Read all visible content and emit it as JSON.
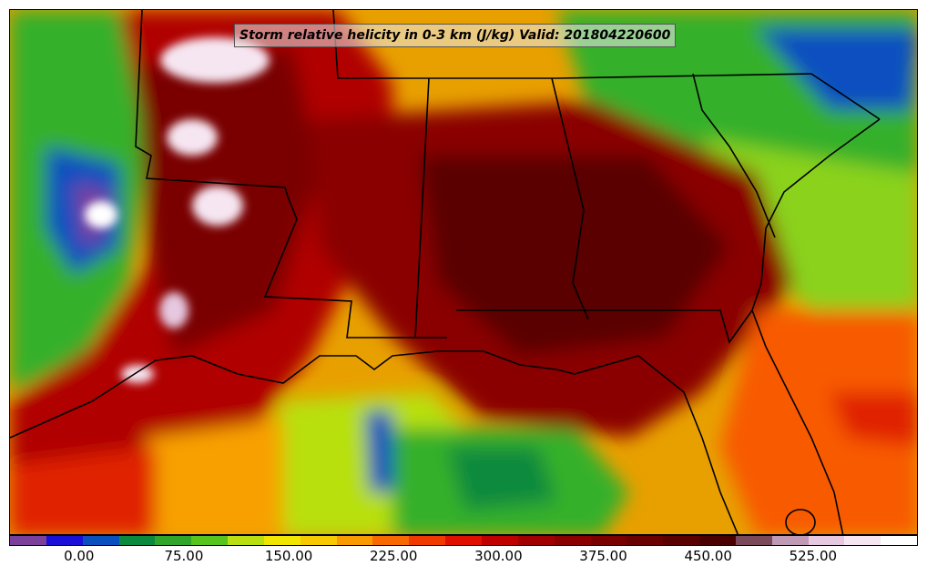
{
  "title": "Storm relative helicity in 0-3 km (J/kg) Valid: 201804220600",
  "colorbar": {
    "min": -50,
    "max": 600,
    "tick_labels": [
      "0.00",
      "75.00",
      "150.00",
      "225.00",
      "300.00",
      "375.00",
      "450.00",
      "525.00"
    ],
    "tick_values": [
      0,
      75,
      150,
      225,
      300,
      375,
      450,
      525
    ],
    "colors": [
      "#7b3f9c",
      "#1a0fd8",
      "#0a4fc0",
      "#0a8a3c",
      "#2fa52a",
      "#55c41e",
      "#b8e010",
      "#f0e600",
      "#f8c800",
      "#f89a00",
      "#f86a00",
      "#f03a00",
      "#e01000",
      "#c00000",
      "#a00000",
      "#8a0000",
      "#7a0000",
      "#6a0000",
      "#5a0000",
      "#4a0000",
      "#7a4a5a",
      "#c09ab4",
      "#e6c8e0",
      "#f6e6f2",
      "#ffffff"
    ]
  },
  "map": {
    "background_color": "#c81e00",
    "boundary_color": "#000000"
  }
}
